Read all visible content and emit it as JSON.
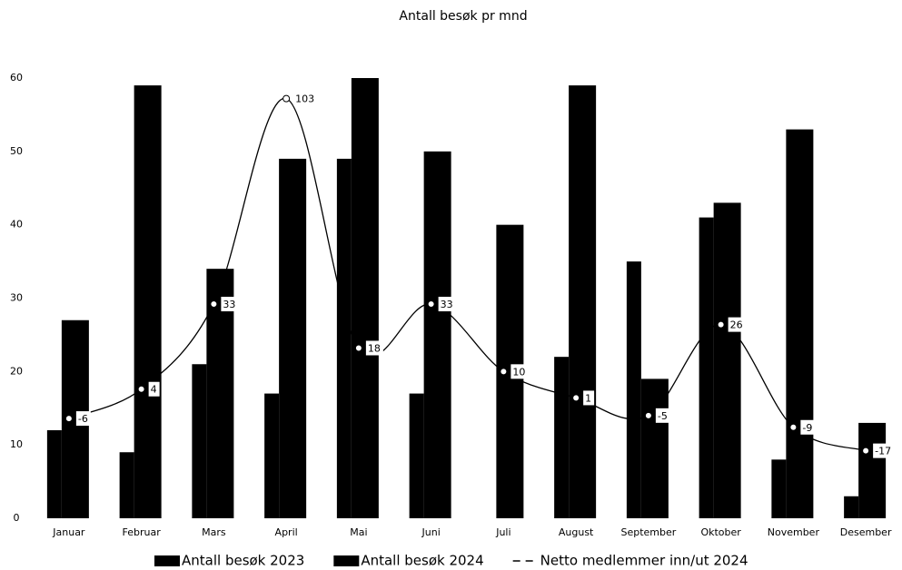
{
  "chart_data": {
    "type": "bar",
    "title": "Antall besøk pr mnd",
    "categories": [
      "Januar",
      "Februar",
      "Mars",
      "April",
      "Mai",
      "Juni",
      "Juli",
      "August",
      "September",
      "Oktober",
      "November",
      "Desember"
    ],
    "series": [
      {
        "name": "Antall besøk 2023",
        "color": "#000000",
        "values": [
          12,
          9,
          21,
          17,
          49,
          17,
          null,
          22,
          35,
          41,
          8,
          3
        ]
      },
      {
        "name": "Antall besøk 2024",
        "color": "#000000",
        "values": [
          27,
          59,
          34,
          49,
          60,
          50,
          40,
          59,
          19,
          43,
          53,
          13
        ]
      },
      {
        "name": "Netto medlemmer inn/ut 2024",
        "type": "line",
        "axis": "y2",
        "color": "#000000",
        "values": [
          -6,
          4,
          33,
          103,
          18,
          33,
          10,
          1,
          -5,
          26,
          -9,
          -17
        ]
      }
    ],
    "ylim": [
      0,
      60
    ],
    "yticks": [
      0,
      10,
      20,
      30,
      40,
      50,
      60
    ],
    "y2lim": [
      -40,
      110
    ],
    "grid": false,
    "legend": "bottom"
  }
}
